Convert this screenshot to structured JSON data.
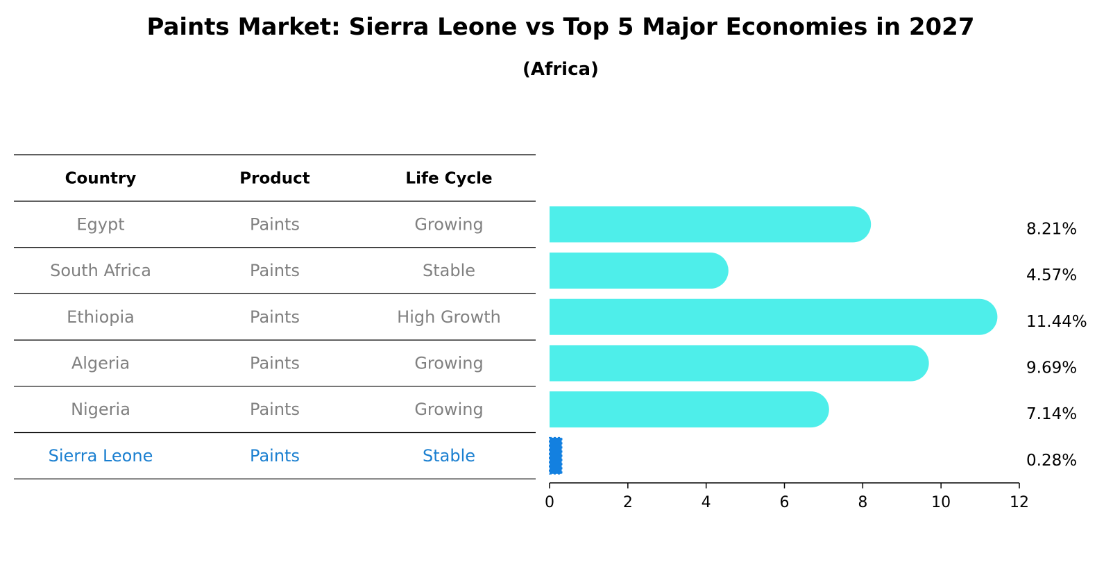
{
  "chart_data": {
    "type": "bar",
    "orientation": "horizontal",
    "title": "Paints Market: Sierra Leone vs Top 5 Major Economies in 2027",
    "subtitle": "(Africa)",
    "table": {
      "headers": [
        "Country",
        "Product",
        "Life Cycle"
      ],
      "rows": [
        [
          "Egypt",
          "Paints",
          "Growing"
        ],
        [
          "South Africa",
          "Paints",
          "Stable"
        ],
        [
          "Ethiopia",
          "Paints",
          "High Growth"
        ],
        [
          "Algeria",
          "Paints",
          "Growing"
        ],
        [
          "Nigeria",
          "Paints",
          "Growing"
        ],
        [
          "Sierra Leone",
          "Paints",
          "Stable"
        ]
      ],
      "highlight_row": 5
    },
    "categories": [
      "Egypt",
      "South Africa",
      "Ethiopia",
      "Algeria",
      "Nigeria",
      "Sierra Leone"
    ],
    "values": [
      8.21,
      4.57,
      11.44,
      9.69,
      7.14,
      0.28
    ],
    "value_labels": [
      "8.21%",
      "4.57%",
      "11.44%",
      "9.69%",
      "7.14%",
      "0.28%"
    ],
    "xlim": [
      0,
      12
    ],
    "xticks": [
      0,
      2,
      4,
      6,
      8,
      10,
      12
    ],
    "xtick_labels": [
      "0",
      "2",
      "4",
      "6",
      "8",
      "10",
      "12"
    ],
    "grid": false,
    "colors": {
      "bar": "#4eeeea",
      "highlight_bar": "#1380e0",
      "highlight_text": "#1a7fd0",
      "normal_text": "#808080"
    }
  }
}
